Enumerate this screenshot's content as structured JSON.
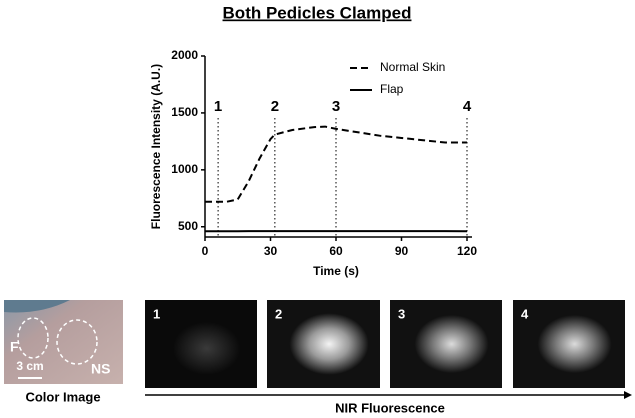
{
  "chart_data": {
    "type": "line",
    "title": "Both Pedicles Clamped",
    "x_label": "Time (s)",
    "y_label": "Fluorescence Intensity (A.U.)",
    "x": [
      0,
      10,
      15,
      20,
      25,
      30,
      32,
      40,
      50,
      55,
      60,
      70,
      80,
      90,
      100,
      110,
      120
    ],
    "series": [
      {
        "name": "Normal Skin",
        "color": "#000000",
        "dash": "dashed",
        "values": [
          720,
          720,
          740,
          900,
          1100,
          1270,
          1310,
          1350,
          1375,
          1380,
          1360,
          1330,
          1300,
          1280,
          1260,
          1240,
          1240
        ]
      },
      {
        "name": "Flap",
        "color": "#000000",
        "dash": "solid",
        "values": [
          460,
          460,
          460,
          462,
          462,
          462,
          462,
          462,
          462,
          462,
          462,
          462,
          462,
          462,
          462,
          462,
          460
        ]
      }
    ],
    "annotations": [
      {
        "x": 6,
        "label": "1"
      },
      {
        "x": 32,
        "label": "2"
      },
      {
        "x": 60,
        "label": "3"
      },
      {
        "x": 120,
        "label": "4"
      }
    ],
    "xlim": [
      0,
      120
    ],
    "xticks": [
      0,
      30,
      60,
      90,
      120
    ],
    "ylim": [
      410,
      2000
    ],
    "yticks": [
      500,
      1000,
      1500,
      2000
    ],
    "legend": "top-right",
    "grid": false
  },
  "figure": {
    "color_image": {
      "label": "Color Image",
      "marks": [
        "F",
        "NS"
      ],
      "scale": "3 cm"
    },
    "nir_panels": [
      "1",
      "2",
      "3",
      "4"
    ],
    "nir_label": "NIR Fluorescence"
  }
}
